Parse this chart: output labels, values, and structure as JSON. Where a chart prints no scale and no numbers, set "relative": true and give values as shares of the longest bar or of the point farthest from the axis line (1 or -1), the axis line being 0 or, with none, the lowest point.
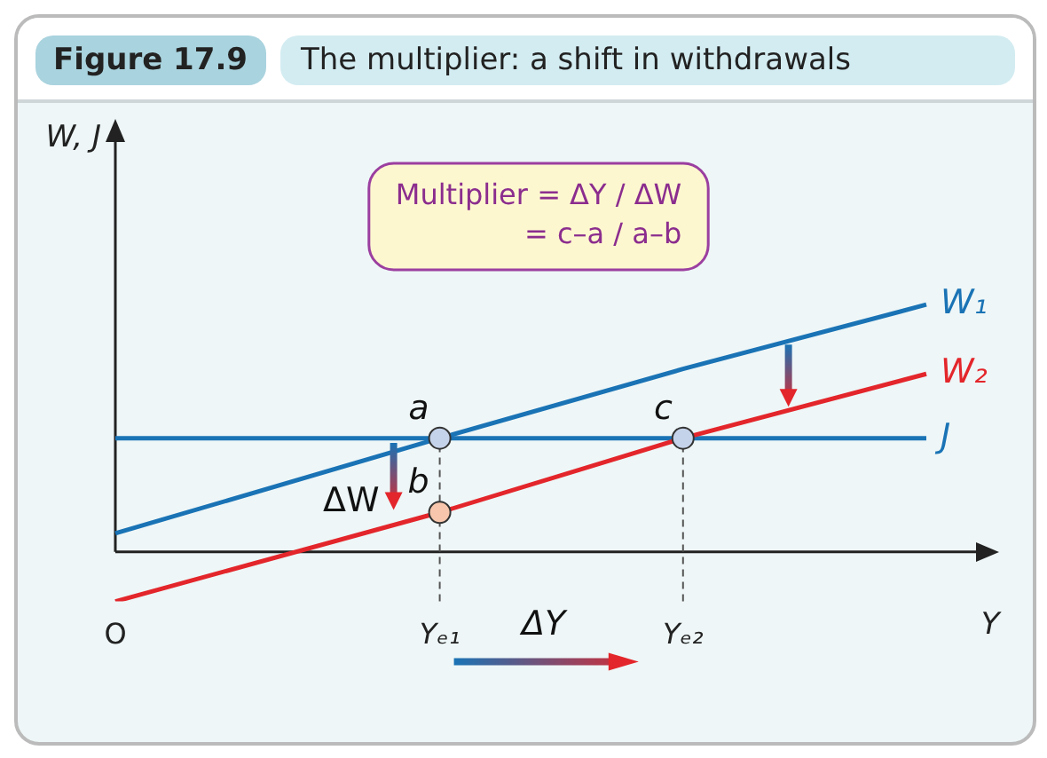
{
  "chart_data": {
    "type": "line",
    "title": "Figure 17.9",
    "subtitle": "The multiplier: a shift in withdrawals",
    "xlabel": "Y",
    "ylabel": "W, J",
    "relative": true,
    "legend": false,
    "categories": [
      "O",
      null,
      null,
      null,
      "Yₑ₁",
      null,
      null,
      "Yₑ₂",
      null,
      null,
      null
    ],
    "series": [
      {
        "name": "W₁",
        "color": "#1a73b5",
        "values": [
          0.075,
          null,
          null,
          null,
          0.46,
          null,
          null,
          0.74,
          null,
          null,
          1.0
        ]
      },
      {
        "name": "W₂",
        "color": "#e3262b",
        "values": [
          -0.2,
          null,
          null,
          null,
          0.16,
          null,
          null,
          0.46,
          null,
          null,
          0.72
        ]
      },
      {
        "name": "J",
        "color": "#1a73b5",
        "values": [
          0.46,
          0.46,
          0.46,
          0.46,
          0.46,
          0.46,
          0.46,
          0.46,
          0.46,
          0.46,
          0.46
        ]
      },
      {
        "type": "scatter",
        "color": "#c5d3ea",
        "x": [
          "Yₑ₁",
          "Yₑ₂"
        ],
        "values": [
          0.46,
          0.46
        ]
      },
      {
        "type": "scatter",
        "color": "#f7c6ac",
        "x": [
          "Yₑ₁"
        ],
        "values": [
          0.16
        ]
      }
    ],
    "ref_lines": [
      {
        "axis": "x",
        "value": "Yₑ₁",
        "line_style": "dashed",
        "color": "#555555"
      },
      {
        "axis": "x",
        "value": "Yₑ₂",
        "line_style": "dashed",
        "color": "#555555"
      }
    ],
    "annotations": [
      "Multiplier = ΔY / ΔW\n= c–a / a–b",
      "ΔY",
      "a",
      "c",
      "b",
      "ΔW"
    ]
  }
}
